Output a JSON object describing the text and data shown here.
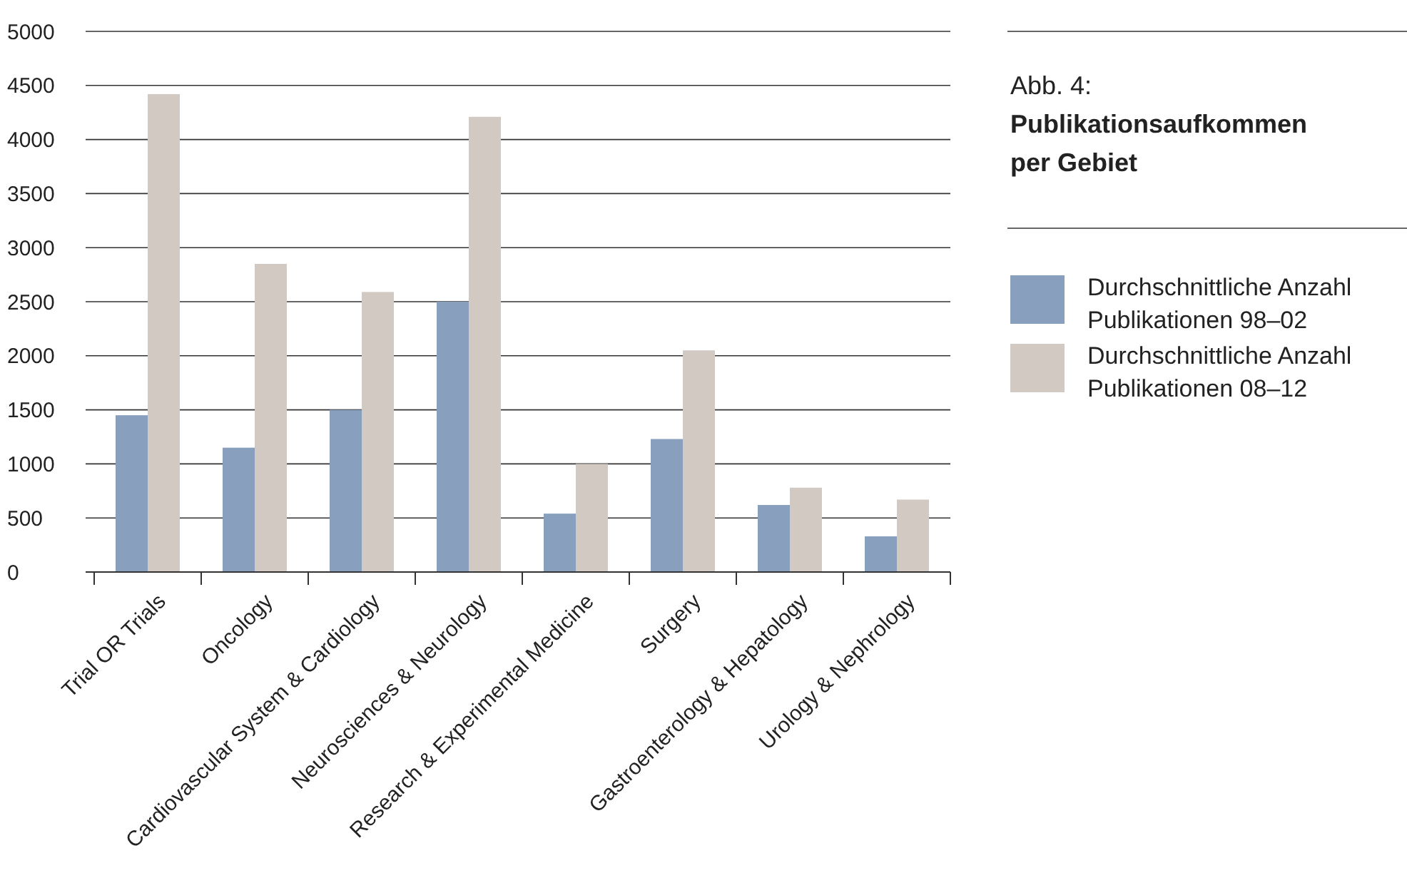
{
  "chart_data": {
    "type": "bar",
    "title": "Abb. 4:",
    "subtitle": "Publikationsaufkommen per Gebiet",
    "categories": [
      "Trial OR Trials",
      "Oncology",
      "Cardiovascular System & Cardiology",
      "Neurosciences & Neurology",
      "Research & Experimental Medicine",
      "Surgery",
      "Gastroenterology & Hepatology",
      "Urology & Nephrology"
    ],
    "series": [
      {
        "name": "Durchschnittliche Anzahl Publikationen 98–02",
        "color": "#889fbd",
        "values": [
          1450,
          1150,
          1500,
          2500,
          540,
          1230,
          620,
          330
        ]
      },
      {
        "name": "Durchschnittliche Anzahl Publikationen 08–12",
        "color": "#d3c9c3",
        "values": [
          4420,
          2850,
          2590,
          4210,
          1000,
          2050,
          780,
          670
        ]
      }
    ],
    "ylim": [
      0,
      5000
    ],
    "yticks": [
      0,
      500,
      1000,
      1500,
      2000,
      2500,
      3000,
      3500,
      4000,
      4500,
      5000
    ],
    "grid": "y",
    "legend": "right"
  }
}
